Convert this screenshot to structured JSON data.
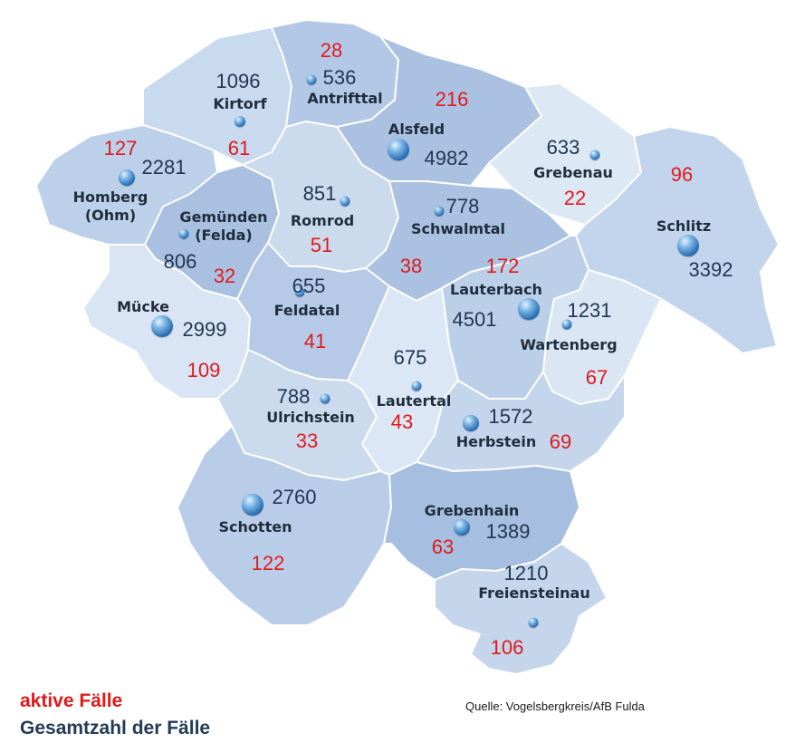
{
  "legend": {
    "active_label": "aktive Fälle",
    "total_label": "Gesamtzahl der Fälle"
  },
  "source": "Quelle: Vogelsbergkreis/AfB Fulda",
  "colors": {
    "active": "#e11a1a",
    "total": "#1f3552",
    "region_light": "#d7e3f3",
    "region_mid": "#bccfe8",
    "region_dark": "#a7bfdf"
  },
  "municipalities": [
    {
      "id": "kirtorf",
      "name": "Kirtorf",
      "total": "1096",
      "active": "61"
    },
    {
      "id": "antrifttal",
      "name": "Antrifttal",
      "total": "536",
      "active": "28"
    },
    {
      "id": "alsfeld",
      "name": "Alsfeld",
      "total": "4982",
      "active": "216"
    },
    {
      "id": "grebenau",
      "name": "Grebenau",
      "total": "633",
      "active": "22"
    },
    {
      "id": "schlitz",
      "name": "Schlitz",
      "total": "3392",
      "active": "96"
    },
    {
      "id": "homberg",
      "name": "Homberg\n(Ohm)",
      "total": "2281",
      "active": "127"
    },
    {
      "id": "gemuenden",
      "name": "Gemünden\n(Felda)",
      "total": "806",
      "active": "32"
    },
    {
      "id": "romrod",
      "name": "Romrod",
      "total": "851",
      "active": "51"
    },
    {
      "id": "schwalmtal",
      "name": "Schwalmtal",
      "total": "778",
      "active": "38"
    },
    {
      "id": "lauterbach",
      "name": "Lauterbach",
      "total": "4501",
      "active": "172"
    },
    {
      "id": "wartenberg",
      "name": "Wartenberg",
      "total": "1231",
      "active": "67"
    },
    {
      "id": "muecke",
      "name": "Mücke",
      "total": "2999",
      "active": "109"
    },
    {
      "id": "feldatal",
      "name": "Feldatal",
      "total": "655",
      "active": "41"
    },
    {
      "id": "ulrichstein",
      "name": "Ulrichstein",
      "total": "788",
      "active": "33"
    },
    {
      "id": "lautertal",
      "name": "Lautertal",
      "total": "675",
      "active": "43"
    },
    {
      "id": "herbstein",
      "name": "Herbstein",
      "total": "1572",
      "active": "69"
    },
    {
      "id": "schotten",
      "name": "Schotten",
      "total": "2760",
      "active": "122"
    },
    {
      "id": "grebenhain",
      "name": "Grebenhain",
      "total": "1389",
      "active": "63"
    },
    {
      "id": "freiensteinau",
      "name": "Freiensteinau",
      "total": "1210",
      "active": "106"
    }
  ]
}
